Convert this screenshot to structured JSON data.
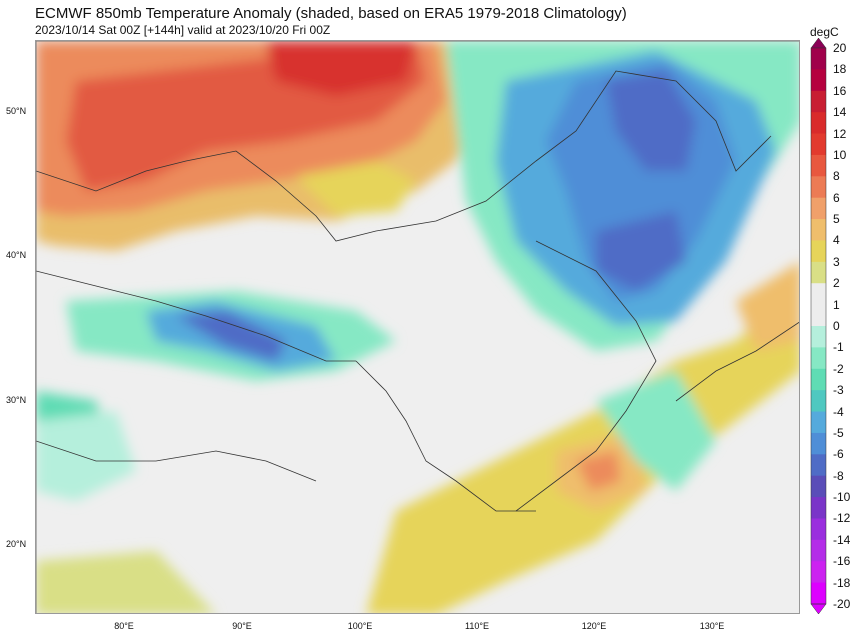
{
  "header": {
    "title": "ECMWF 850mb Temperature Anomaly (shaded, based on ERA5 1979-2018 Climatology)",
    "subtitle": "2023/10/14 Sat 00Z [+144h] valid at 2023/10/20 Fri 00Z"
  },
  "axes": {
    "lat_labels": [
      "50°N",
      "40°N",
      "30°N",
      "20°N"
    ],
    "lon_labels": [
      "80°E",
      "90°E",
      "100°E",
      "110°E",
      "120°E",
      "130°E"
    ]
  },
  "colorbar": {
    "unit": "degC",
    "labels": [
      "20",
      "18",
      "16",
      "14",
      "12",
      "10",
      "8",
      "6",
      "5",
      "4",
      "3",
      "2",
      "1",
      "0",
      "-1",
      "-2",
      "-3",
      "-4",
      "-5",
      "-6",
      "-8",
      "-10",
      "-12",
      "-14",
      "-16",
      "-18",
      "-20"
    ],
    "colors": [
      "#8b0056",
      "#a0004b",
      "#b5003e",
      "#c81e32",
      "#d92b2b",
      "#e23a2e",
      "#e8583f",
      "#ec7b55",
      "#f0a06a",
      "#efbe6c",
      "#e6d45a",
      "#d9df86",
      "#ededed",
      "#ededed",
      "#b5efdc",
      "#86e8c4",
      "#5fdcb4",
      "#4fc8c0",
      "#55aadc",
      "#4f8ed7",
      "#4f6cc6",
      "#5a4db8",
      "#7a35c8",
      "#9a2ede",
      "#b42de8",
      "#cc22f0",
      "#dd00ff"
    ],
    "top_color": "#8b0056",
    "bottom_color": "#dd00ff"
  }
}
